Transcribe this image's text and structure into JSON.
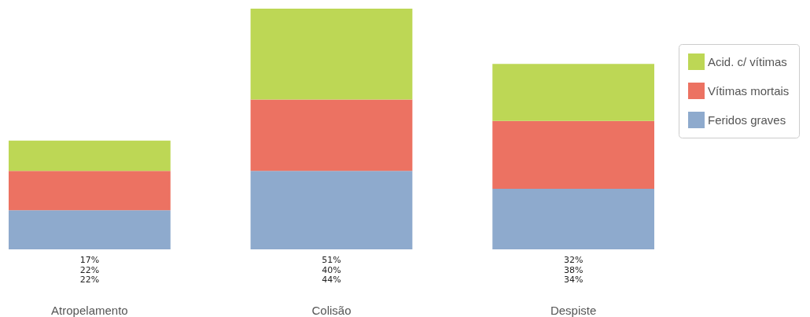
{
  "chart_data": {
    "type": "bar",
    "stacked": true,
    "legend": "right",
    "categories": [
      "Atropelamento",
      "Colisão",
      "Despiste"
    ],
    "series": [
      {
        "name": "Feridos graves",
        "color": "#8eaacd",
        "values": [
          22,
          44,
          34
        ],
        "value_labels": [
          "22%",
          "44%",
          "34%"
        ]
      },
      {
        "name": "Vítimas mortais",
        "color": "#ec7262",
        "values": [
          22,
          40,
          38
        ],
        "value_labels": [
          "22%",
          "40%",
          "38%"
        ]
      },
      {
        "name": "Acid. c/ vítimas",
        "color": "#bdd755",
        "values": [
          17,
          51,
          32
        ],
        "value_labels": [
          "17%",
          "51%",
          "32%"
        ]
      }
    ]
  }
}
